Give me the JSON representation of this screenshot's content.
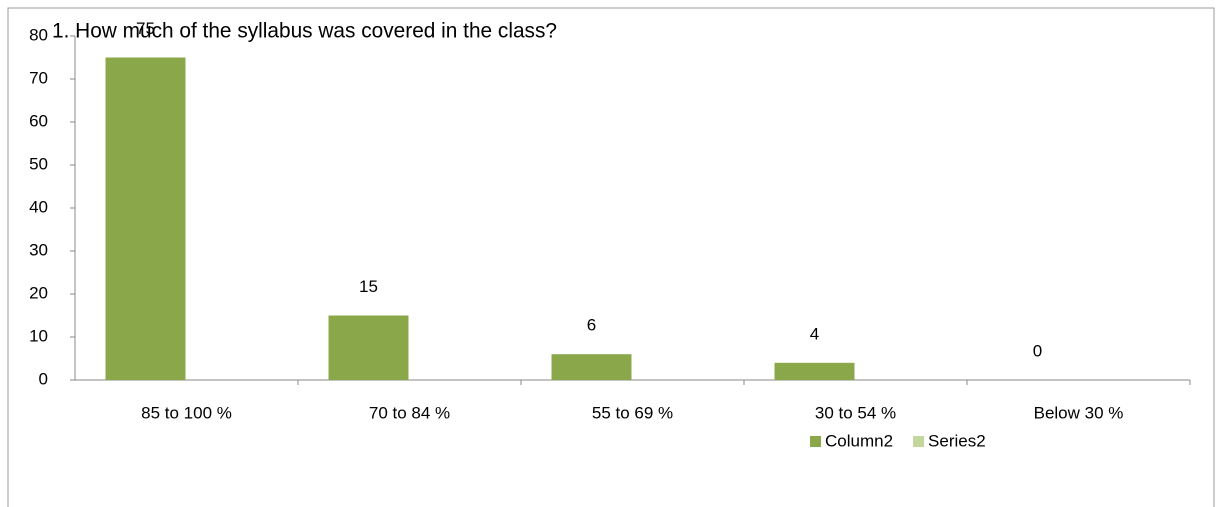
{
  "chart_data": {
    "type": "bar",
    "title": "1. How much of the syllabus was covered in the class?",
    "categories": [
      "85 to 100 %",
      "70 to 84 %",
      "55 to 69 %",
      "30 to 54 %",
      "Below 30 %"
    ],
    "series": [
      {
        "name": "Column2",
        "color": "#8aa84a",
        "values": [
          75,
          15,
          6,
          4,
          0
        ]
      },
      {
        "name": "Series2",
        "color": "#c3d69b",
        "values": [
          null,
          null,
          null,
          null,
          null
        ]
      }
    ],
    "ylim": [
      0,
      80
    ],
    "yticks": [
      0,
      10,
      20,
      30,
      40,
      50,
      60,
      70,
      80
    ],
    "grid": false,
    "legend": "bottom"
  }
}
